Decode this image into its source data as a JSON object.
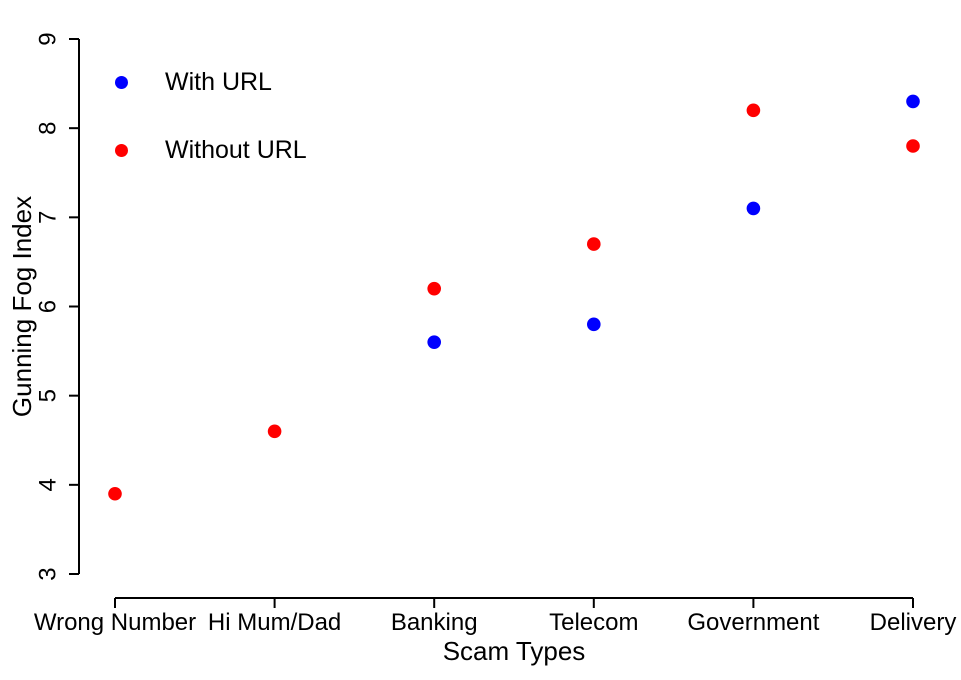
{
  "chart_data": {
    "type": "scatter",
    "xlabel": "Scam Types",
    "ylabel": "Gunning Fog Index",
    "categories": [
      "Wrong Number",
      "Hi Mum/Dad",
      "Banking",
      "Telecom",
      "Government",
      "Delivery"
    ],
    "series": [
      {
        "name": "With URL",
        "color": "#0000ff",
        "values": [
          null,
          null,
          5.6,
          5.8,
          7.1,
          8.3
        ]
      },
      {
        "name": "Without URL",
        "color": "#ff0000",
        "values": [
          3.9,
          4.6,
          6.2,
          6.7,
          8.2,
          7.8
        ]
      }
    ],
    "ylim": [
      3,
      9
    ],
    "yticks": [
      3,
      4,
      5,
      6,
      7,
      8,
      9
    ],
    "grid": false,
    "legend_position": "top-left",
    "marker": "filled-circle",
    "background": "#ffffff",
    "axis_color": "#000000"
  }
}
